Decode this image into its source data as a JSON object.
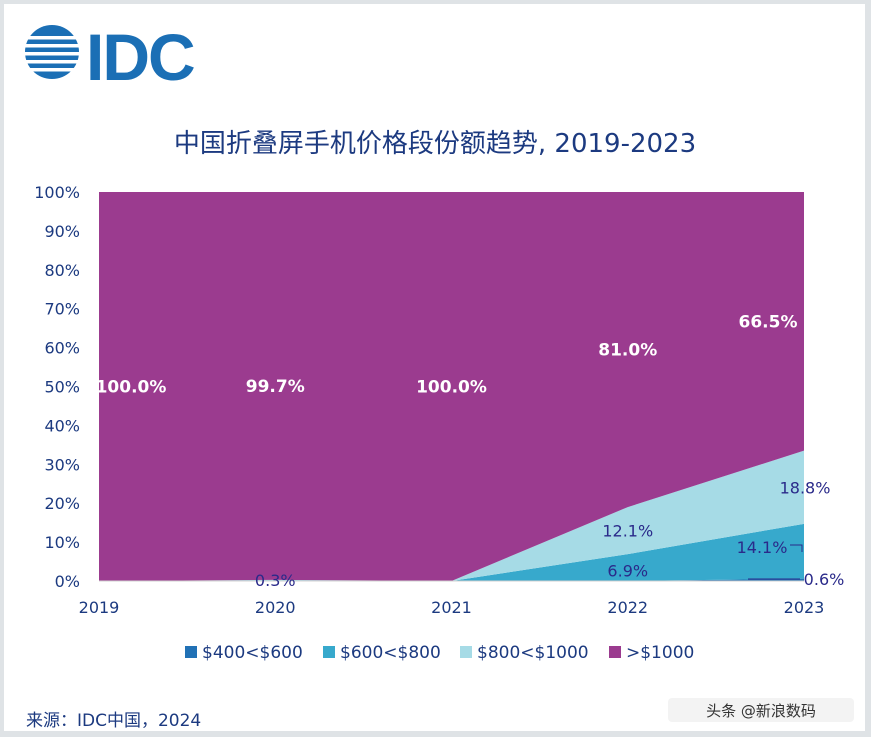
{
  "logo": {
    "text": "IDC",
    "color": "#1b6fb5"
  },
  "watermark": "头条 @新浪数码",
  "source": "来源：IDC中国，2024",
  "chart_data": {
    "type": "area",
    "stacked": true,
    "percent": true,
    "title": "中国折叠屏手机价格段份额趋势, 2019-2023",
    "x": [
      "2019",
      "2020",
      "2021",
      "2022",
      "2023"
    ],
    "yticks": [
      "0%",
      "10%",
      "20%",
      "30%",
      "40%",
      "50%",
      "60%",
      "70%",
      "80%",
      "90%",
      "100%"
    ],
    "ylim": [
      0,
      100
    ],
    "legend_position": "bottom",
    "series": [
      {
        "name": "$400<$600",
        "color": "#2171b5",
        "values": [
          0,
          0,
          0,
          0,
          0.6
        ]
      },
      {
        "name": "$600<$800",
        "color": "#37a9cc",
        "values": [
          0,
          0,
          0,
          6.9,
          14.1
        ]
      },
      {
        "name": "$800<$1000",
        "color": "#a6dbe6",
        "values": [
          0,
          0.3,
          0,
          12.1,
          18.8
        ]
      },
      {
        "name": ">$1000",
        "color": "#9b3b8f",
        "values": [
          100.0,
          99.7,
          100.0,
          81.0,
          66.5
        ]
      }
    ],
    "data_labels": {
      "$400<$600": [
        "",
        "",
        "",
        "",
        "0.6%"
      ],
      "$600<$800": [
        "",
        "",
        "",
        "6.9%",
        "14.1%"
      ],
      "$800<$1000": [
        "",
        "0.3%",
        "",
        "12.1%",
        "18.8%"
      ],
      ">$1000": [
        "100.0%",
        "99.7%",
        "100.0%",
        "81.0%",
        "66.5%"
      ]
    }
  }
}
